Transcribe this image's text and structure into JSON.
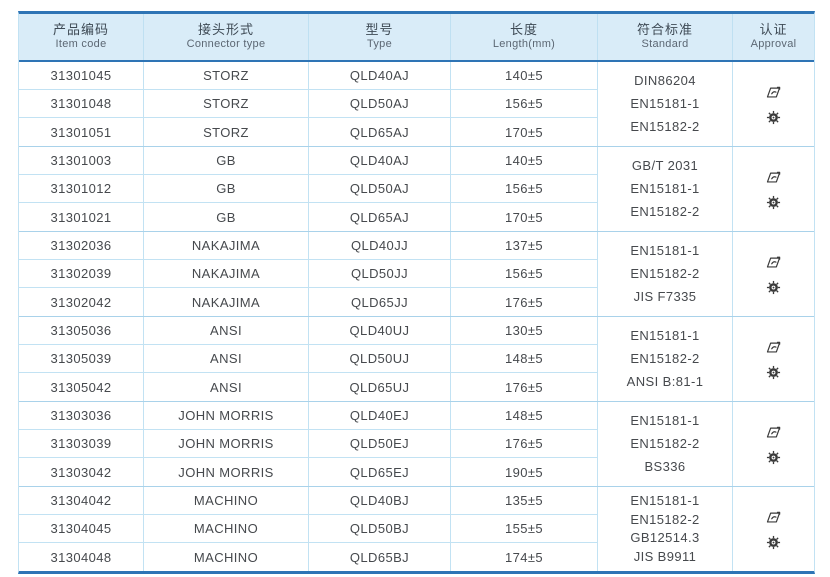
{
  "table": {
    "headers": [
      {
        "zh": "产品编码",
        "en": "Item code"
      },
      {
        "zh": "接头形式",
        "en": "Connector type"
      },
      {
        "zh": "型号",
        "en": "Type"
      },
      {
        "zh": "长度",
        "en": "Length(mm)"
      },
      {
        "zh": "符合标准",
        "en": "Standard"
      },
      {
        "zh": "认证",
        "en": "Approval"
      }
    ],
    "approval_icons": [
      "certificate-mark-icon",
      "gear-seal-icon"
    ],
    "colors": {
      "border_strong": "#2e74b5",
      "header_bg": "#d9ecf8",
      "grid_line": "#a9d2ea",
      "text": "#46494d"
    },
    "groups": [
      {
        "rows": [
          {
            "item_code": "31301045",
            "connector_type": "STORZ",
            "type": "QLD40AJ",
            "length": "140±5"
          },
          {
            "item_code": "31301048",
            "connector_type": "STORZ",
            "type": "QLD50AJ",
            "length": "156±5"
          },
          {
            "item_code": "31301051",
            "connector_type": "STORZ",
            "type": "QLD65AJ",
            "length": "170±5"
          }
        ],
        "standards": [
          "DIN86204",
          "EN15181-1",
          "EN15182-2"
        ]
      },
      {
        "rows": [
          {
            "item_code": "31301003",
            "connector_type": "GB",
            "type": "QLD40AJ",
            "length": "140±5"
          },
          {
            "item_code": "31301012",
            "connector_type": "GB",
            "type": "QLD50AJ",
            "length": "156±5"
          },
          {
            "item_code": "31301021",
            "connector_type": "GB",
            "type": "QLD65AJ",
            "length": "170±5"
          }
        ],
        "standards": [
          "GB/T 2031",
          "EN15181-1",
          "EN15182-2"
        ]
      },
      {
        "rows": [
          {
            "item_code": "31302036",
            "connector_type": "NAKAJIMA",
            "type": "QLD40JJ",
            "length": "137±5"
          },
          {
            "item_code": "31302039",
            "connector_type": "NAKAJIMA",
            "type": "QLD50JJ",
            "length": "156±5"
          },
          {
            "item_code": "31302042",
            "connector_type": "NAKAJIMA",
            "type": "QLD65JJ",
            "length": "176±5"
          }
        ],
        "standards": [
          "EN15181-1",
          "EN15182-2",
          "JIS F7335"
        ]
      },
      {
        "rows": [
          {
            "item_code": "31305036",
            "connector_type": "ANSI",
            "type": "QLD40UJ",
            "length": "130±5"
          },
          {
            "item_code": "31305039",
            "connector_type": "ANSI",
            "type": "QLD50UJ",
            "length": "148±5"
          },
          {
            "item_code": "31305042",
            "connector_type": "ANSI",
            "type": "QLD65UJ",
            "length": "176±5"
          }
        ],
        "standards": [
          "EN15181-1",
          "EN15182-2",
          "ANSI B:81-1"
        ]
      },
      {
        "rows": [
          {
            "item_code": "31303036",
            "connector_type": "JOHN MORRIS",
            "type": "QLD40EJ",
            "length": "148±5"
          },
          {
            "item_code": "31303039",
            "connector_type": "JOHN MORRIS",
            "type": "QLD50EJ",
            "length": "176±5"
          },
          {
            "item_code": "31303042",
            "connector_type": "JOHN MORRIS",
            "type": "QLD65EJ",
            "length": "190±5"
          }
        ],
        "standards": [
          "EN15181-1",
          "EN15182-2",
          "BS336"
        ]
      },
      {
        "rows": [
          {
            "item_code": "31304042",
            "connector_type": "MACHINO",
            "type": "QLD40BJ",
            "length": "135±5"
          },
          {
            "item_code": "31304045",
            "connector_type": "MACHINO",
            "type": "QLD50BJ",
            "length": "155±5"
          },
          {
            "item_code": "31304048",
            "connector_type": "MACHINO",
            "type": "QLD65BJ",
            "length": "174±5"
          }
        ],
        "standards": [
          "EN15181-1",
          "EN15182-2",
          "GB12514.3",
          "JIS B9911"
        ]
      }
    ]
  }
}
